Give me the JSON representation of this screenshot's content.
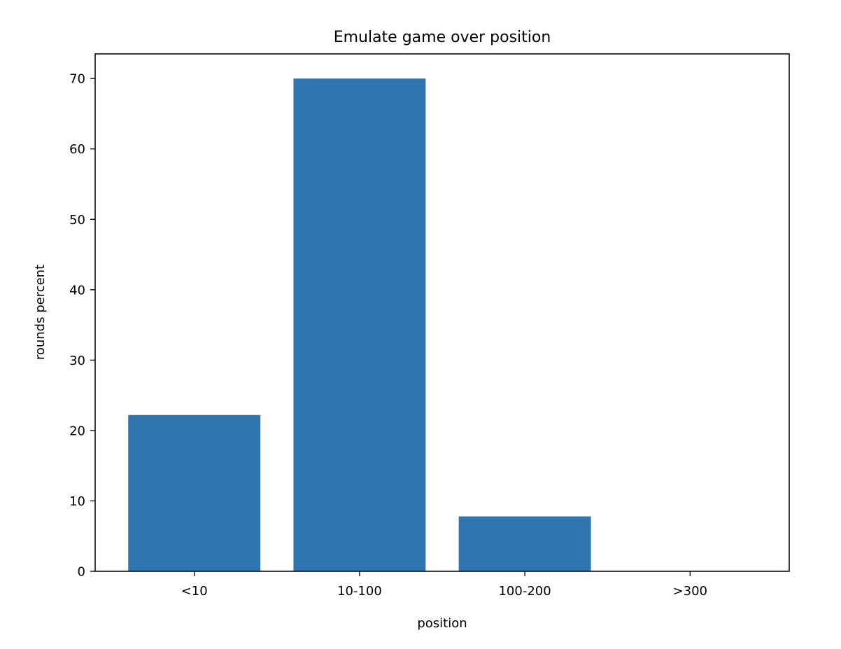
{
  "chart_data": {
    "type": "bar",
    "title": "Emulate game over position",
    "xlabel": "position",
    "ylabel": "rounds percent",
    "categories": [
      "<10",
      "10-100",
      "100-200",
      ">300"
    ],
    "values": [
      22.2,
      70.0,
      7.8,
      0
    ],
    "ylim": [
      0,
      73.5
    ],
    "yticks": [
      0,
      10,
      20,
      30,
      40,
      50,
      60,
      70
    ],
    "grid": false,
    "bar_color": "#2f76b1"
  }
}
